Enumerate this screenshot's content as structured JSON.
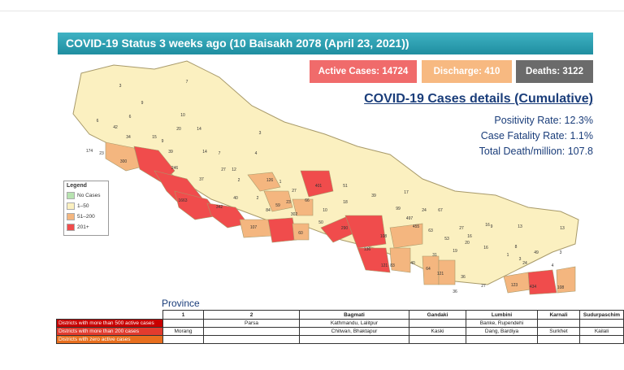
{
  "header": {
    "title": "COVID-19 Status 3 weeks ago (10 Baisakh 2078 (April 23, 2021))"
  },
  "stats": {
    "active": "Active Cases: 14724",
    "discharge": "Discharge: 410",
    "deaths": "Deaths: 3122"
  },
  "details": {
    "title": "COVID-19 Cases details (Cumulative)",
    "positivity": "Positivity Rate: 12.3%",
    "fatality": "Case Fatality Rate: 1.1%",
    "death_per_million": "Total Death/million: 107.8"
  },
  "legend": {
    "title": "Legend",
    "items": [
      {
        "label": "No Cases",
        "color": "#b7e3b0"
      },
      {
        "label": "1–50",
        "color": "#fbf0c0"
      },
      {
        "label": "51–200",
        "color": "#f4b67f"
      },
      {
        "label": "201+",
        "color": "#f04c4c"
      }
    ]
  },
  "map": {
    "colors": {
      "low": "#fbf0c0",
      "mid": "#f4b67f",
      "high": "#f04c4c",
      "border": "#a89a6a"
    },
    "district_values": [
      "3",
      "7",
      "9",
      "42",
      "6",
      "23",
      "6",
      "34",
      "15",
      "10",
      "20",
      "14",
      "3",
      "9",
      "174",
      "300",
      "39",
      "14",
      "7",
      "246",
      "4",
      "12",
      "37",
      "2",
      "27",
      "126",
      "1",
      "27",
      "51",
      "17",
      "1663",
      "40",
      "2",
      "23",
      "401",
      "342",
      "59",
      "66",
      "10",
      "99",
      "107",
      "84",
      "67",
      "60",
      "302",
      "18",
      "39",
      "24",
      "16",
      "9",
      "13",
      "13",
      "50",
      "290",
      "53",
      "16",
      "497",
      "20",
      "19",
      "16",
      "8",
      "455",
      "63",
      "27",
      "108",
      "40",
      "31",
      "136",
      "121",
      "83",
      "49",
      "64",
      "121",
      "36",
      "1",
      "24",
      "3",
      "4",
      "123",
      "434",
      "108",
      "27",
      "36",
      "3"
    ]
  },
  "province": {
    "title": "Province",
    "columns": [
      "1",
      "2",
      "Bagmati",
      "Gandaki",
      "Lumbini",
      "Karnali",
      "Sudurpaschim"
    ],
    "rows": [
      {
        "label": "Districts with more than 500 active cases",
        "cells": [
          "",
          "Parsa",
          "Kathmandu, Lalitpur",
          "",
          "Banke, Rupendehi",
          "",
          ""
        ]
      },
      {
        "label": "Districts with more than 200 cases",
        "cells": [
          "Morang",
          "",
          "Chitwan, Bhaktapur",
          "Kaski",
          "Dang, Bardiya",
          "Surkhet",
          "Kailali"
        ]
      },
      {
        "label": "Districts with zero active cases",
        "cells": [
          "",
          "",
          "",
          "",
          "",
          "",
          ""
        ]
      }
    ]
  }
}
